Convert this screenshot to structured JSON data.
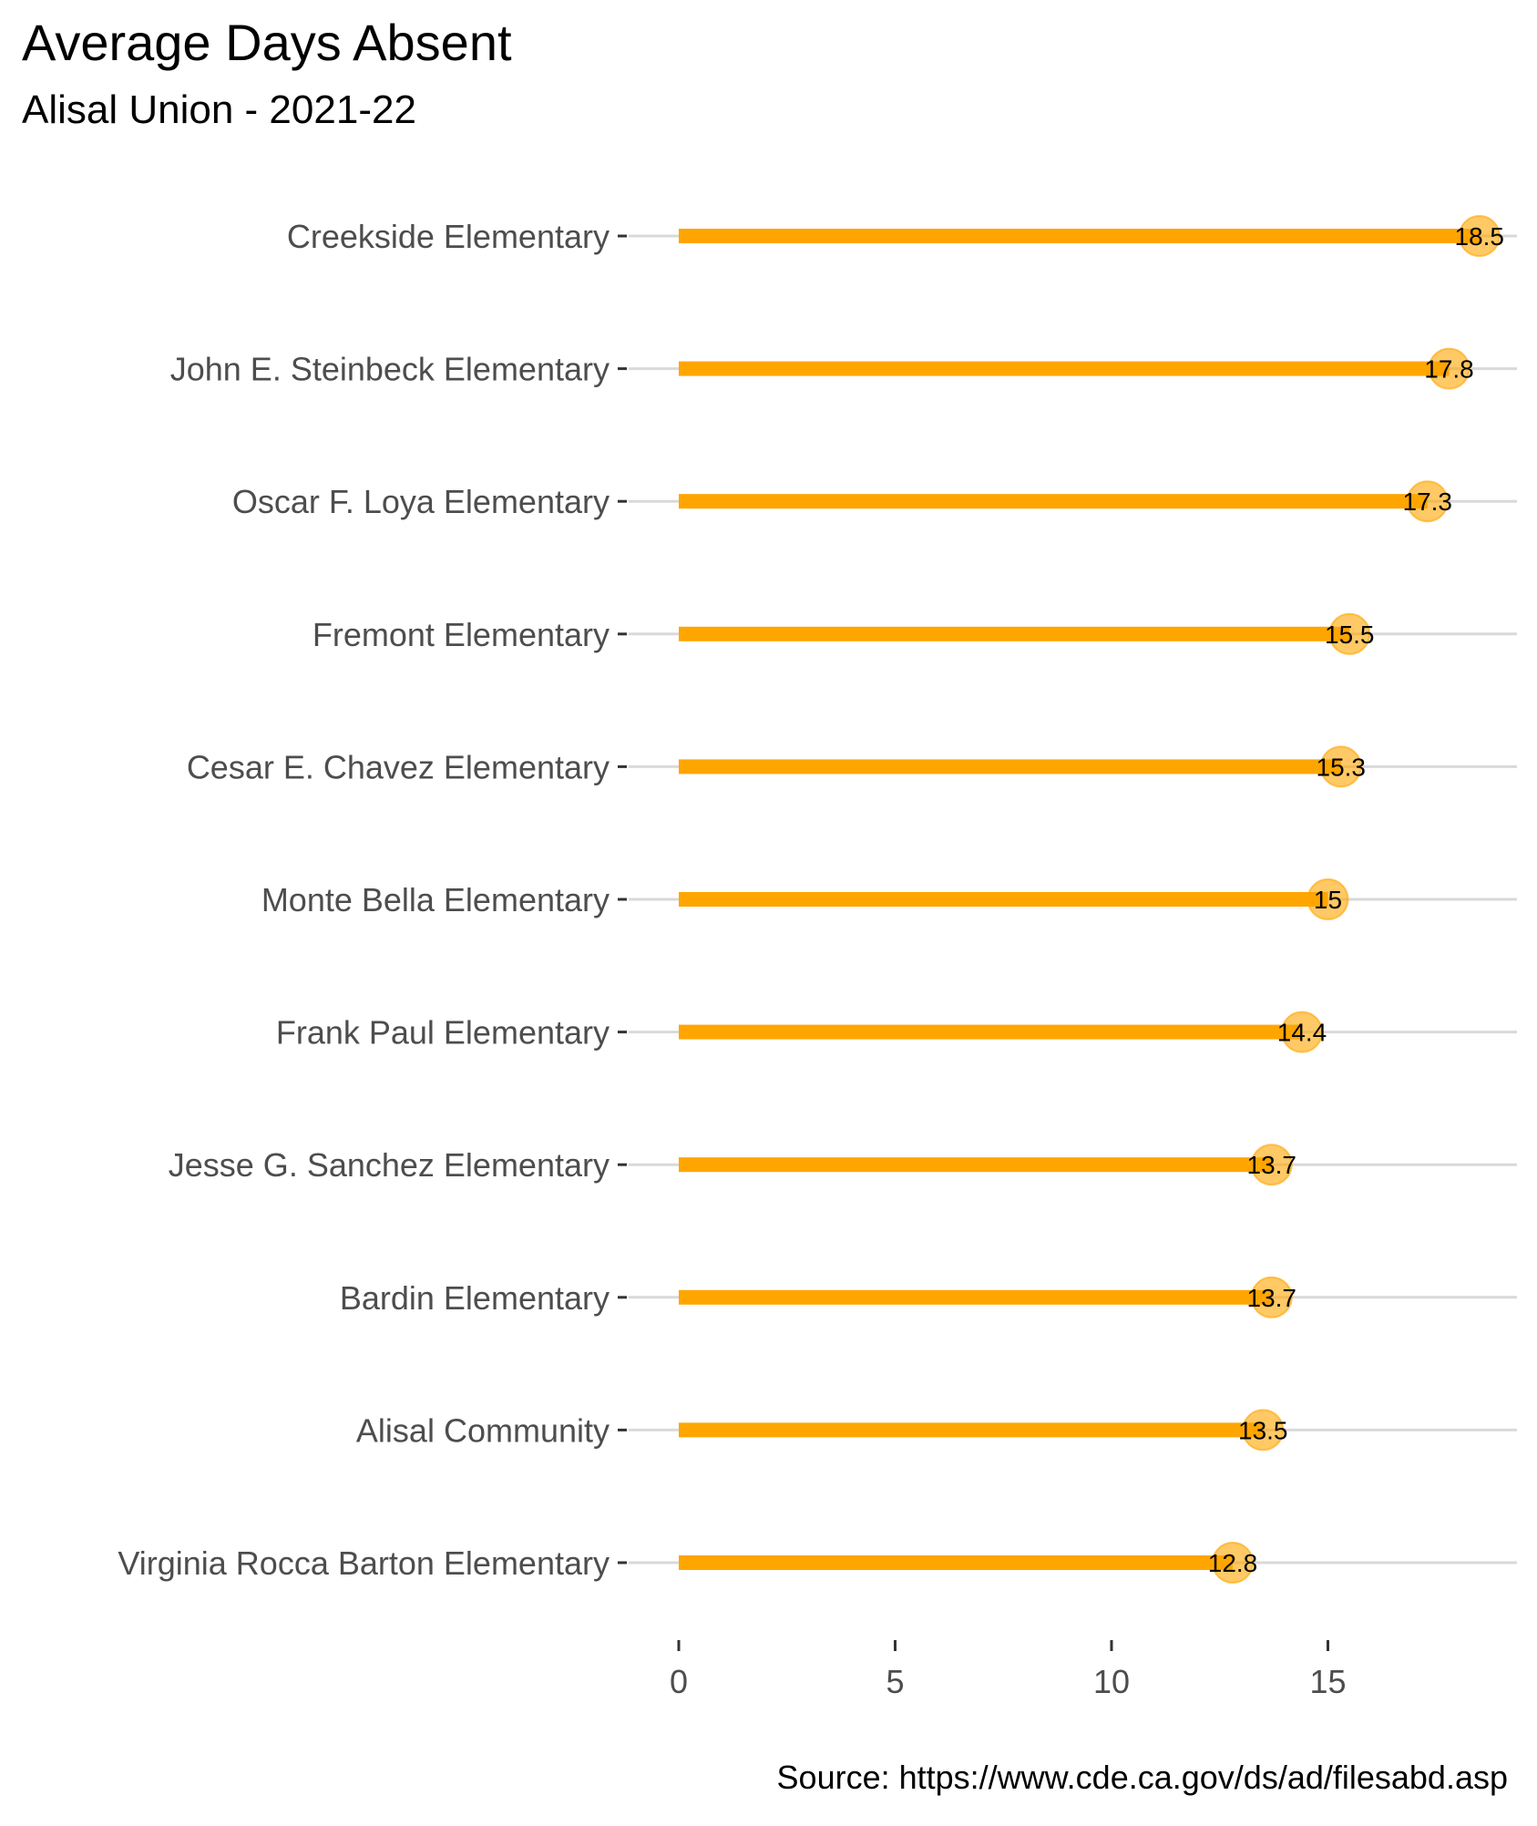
{
  "title": "Average Days Absent",
  "subtitle": "Alisal Union - 2021-22",
  "caption": "Source: https://www.cde.ca.gov/ds/ad/filesabd.asp",
  "colors": {
    "bar": "#FFA500",
    "point": "#FFA500",
    "grid": "#D9D9D9",
    "axis_text": "#4D4D4D",
    "label_text": "#000000"
  },
  "chart_data": {
    "type": "bar",
    "orientation": "horizontal",
    "style": "lollipop",
    "categories": [
      "Creekside Elementary",
      "John E. Steinbeck Elementary",
      "Oscar F. Loya Elementary",
      "Fremont Elementary",
      "Cesar E. Chavez Elementary",
      "Monte Bella Elementary",
      "Frank Paul Elementary",
      "Jesse G. Sanchez Elementary",
      "Bardin Elementary",
      "Alisal Community",
      "Virginia Rocca Barton Elementary"
    ],
    "values": [
      18.5,
      17.8,
      17.3,
      15.5,
      15.3,
      15.0,
      14.4,
      13.7,
      13.7,
      13.5,
      12.8
    ],
    "value_labels": [
      "18.5",
      "17.8",
      "17.3",
      "15.5",
      "15.3",
      "15",
      "14.4",
      "13.7",
      "13.7",
      "13.5",
      "12.8"
    ],
    "x_ticks": [
      0,
      5,
      10,
      15
    ],
    "x_tick_labels": [
      "0",
      "5",
      "10",
      "15"
    ],
    "xlim": [
      0,
      19.3
    ],
    "xlabel": "",
    "ylabel": "",
    "grid": "horizontal-major"
  }
}
